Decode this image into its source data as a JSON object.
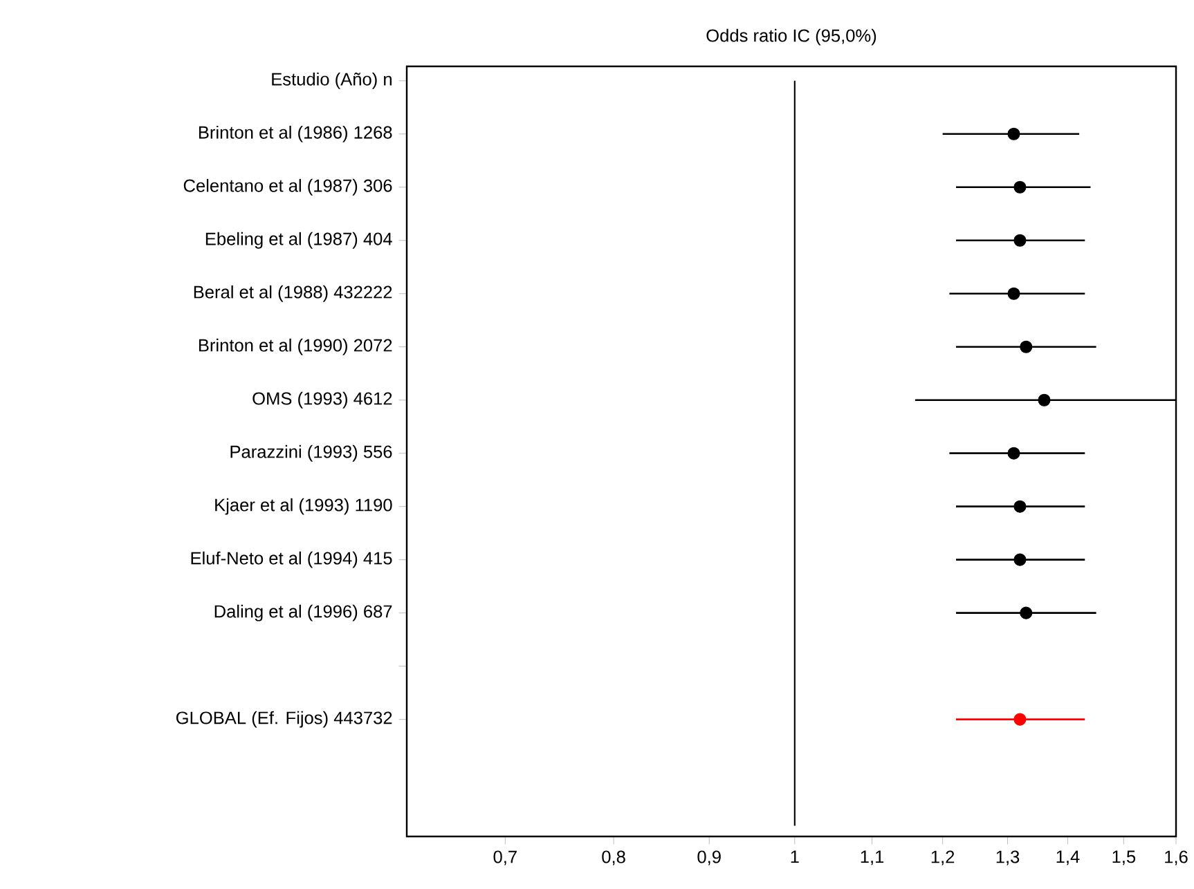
{
  "chart_data": {
    "type": "scatter",
    "orientation": "horizontal",
    "title": "Odds ratio IC  (95,0%)",
    "categories": [
      "Estudio  (Año)   n",
      "Brinton et al (1986)  1268",
      "Celentano et al (1987)   306",
      "Ebeling et al (1987)   404",
      "Beral et al (1988) 432222",
      "Brinton et al (1990)  2072",
      "OMS (1993)  4612",
      "Parazzini (1993)   556",
      "Kjaer et al (1993)  1190",
      "Eluf-Neto et al (1994)   415",
      "Daling et al (1996)   687",
      null,
      "GLOBAL (Ef. Fijos) 443732"
    ],
    "values": [
      null,
      1.31,
      1.32,
      1.32,
      1.31,
      1.33,
      1.36,
      1.31,
      1.32,
      1.32,
      1.33,
      null,
      1.32
    ],
    "errors": [
      null,
      [
        1.2,
        1.42
      ],
      [
        1.22,
        1.44
      ],
      [
        1.22,
        1.43
      ],
      [
        1.21,
        1.43
      ],
      [
        1.22,
        1.45
      ],
      [
        1.16,
        1.6
      ],
      [
        1.21,
        1.43
      ],
      [
        1.22,
        1.43
      ],
      [
        1.22,
        1.43
      ],
      [
        1.22,
        1.45
      ],
      null,
      [
        1.22,
        1.43
      ]
    ],
    "colors": [
      "#000000",
      "#000000",
      "#000000",
      "#000000",
      "#000000",
      "#000000",
      "#000000",
      "#000000",
      "#000000",
      "#000000",
      "#000000",
      "#000000",
      "#ff0000"
    ],
    "xlim": [
      0.62,
      1.6
    ],
    "xticks": [
      {
        "value": 0.7,
        "label": "0,7"
      },
      {
        "value": 0.8,
        "label": "0,8"
      },
      {
        "value": 0.9,
        "label": "0,9"
      },
      1,
      {
        "value": 1.1,
        "label": "1,1"
      },
      {
        "value": 1.2,
        "label": "1,2"
      },
      {
        "value": 1.3,
        "label": "1,3"
      },
      {
        "value": 1.4,
        "label": "1,4"
      },
      {
        "value": 1.5,
        "label": "1,5"
      },
      {
        "value": 1.6,
        "label": "1,6"
      }
    ],
    "log": "x",
    "marker": "circle",
    "grid": false,
    "ref_lines": [
      {
        "axis": "x",
        "value": 1,
        "color": "#000000"
      }
    ]
  }
}
